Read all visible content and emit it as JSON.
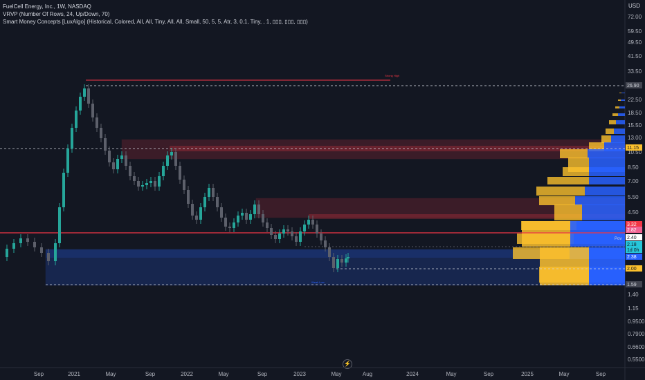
{
  "legend": {
    "line1": "FuelCell Energy, Inc., 1W, NASDAQ",
    "line2": "VRVP (Number Of Rows, 24, Up/Down, 70)",
    "line3": "Smart Money Concepts [LuxAlgo] (Historical, Colored, All, All, Tiny, All, All, Small, 50, 5, 5, Atr, 3, 0.1, Tiny, , 1, ▯▯▯, ▯▯▯, ▯▯▯)"
  },
  "currency": "USD",
  "price_axis": [
    "72.00",
    "59.50",
    "49.50",
    "41.50",
    "33.50",
    "22.50",
    "18.50",
    "15.50",
    "13.00",
    "10.50",
    "8.50",
    "7.00",
    "5.50",
    "4.50",
    "1.40",
    "1.15",
    "0.9500",
    "0.7900",
    "0.6600",
    "0.5500"
  ],
  "price_tags": [
    {
      "text": "26.90",
      "bg": "#434651",
      "fg": "#d1d4dc"
    },
    {
      "text": "11.15",
      "bg": "#fbc02d",
      "fg": "#131722"
    },
    {
      "text": "3.32",
      "bg": "#f23645",
      "fg": "#ffffff"
    },
    {
      "text": "2.82",
      "bg": "#f06292",
      "fg": "#ffffff"
    },
    {
      "text": "2.40",
      "bg": "#ffffff",
      "fg": "#131722"
    },
    {
      "text": "2.18",
      "bg": "#26c6da",
      "fg": "#131722"
    },
    {
      "text": "1d 0h",
      "bg": "#26c6da",
      "fg": "#131722"
    },
    {
      "text": "2.38",
      "bg": "#2962ff",
      "fg": "#ffffff"
    },
    {
      "text": "2.00",
      "bg": "#fbc02d",
      "fg": "#131722"
    },
    {
      "text": "1.59",
      "bg": "#434651",
      "fg": "#d1d4dc"
    }
  ],
  "poc_label": "Pov",
  "time_axis": [
    "Sep",
    "2021",
    "May",
    "Sep",
    "2022",
    "May",
    "Sep",
    "2023",
    "May",
    "Aug",
    "2024",
    "May",
    "Sep",
    "2025",
    "May",
    "Sep"
  ],
  "annotations": {
    "strong_high": "Strong High",
    "weak_low": "Weak Low"
  },
  "colors": {
    "up": "#26a69a",
    "down": "#5d606b",
    "bull_zone": "#2962ff",
    "bear_zone": "#f23645",
    "vol_up": "#2962ff",
    "vol_down": "#fbc02d"
  }
}
